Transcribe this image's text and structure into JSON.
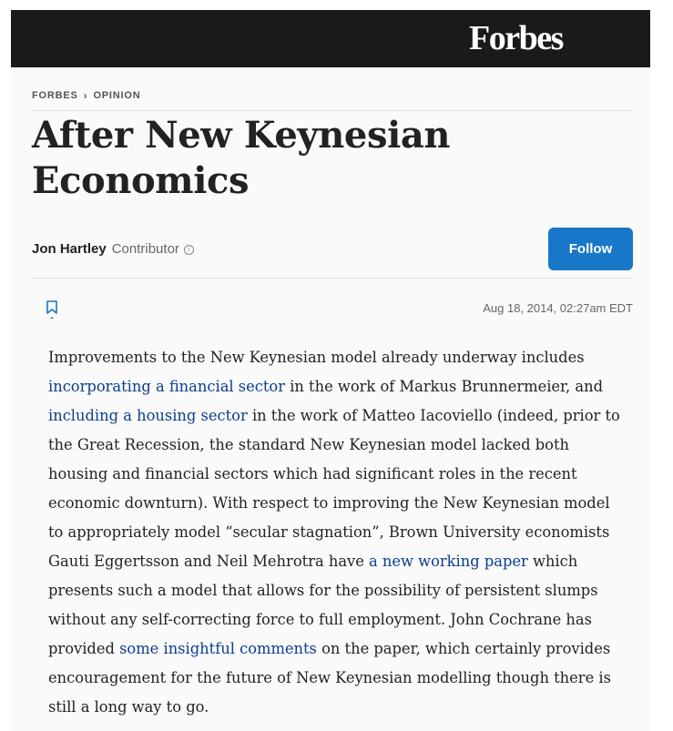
{
  "header": {
    "logo": "Forbes"
  },
  "breadcrumb": {
    "items": [
      "FORBES",
      "OPINION"
    ]
  },
  "article": {
    "title": "After New Keynesian Economics",
    "author": "Jon Hartley",
    "author_role": "Contributor",
    "follow_label": "Follow",
    "date": "Aug 18, 2014, 02:27am EDT",
    "body": {
      "t1": "Improvements to the New Keynesian model already underway includes ",
      "link1": "incorporating a financial sector",
      "t2": " in the work of Markus Brunnermeier, and ",
      "link2": "including a housing sector",
      "t3": " in the work of Matteo Iacoviello (indeed, prior to the Great Recession, the standard New Keynesian model lacked both housing and financial sectors which had significant roles in the recent economic downturn). With respect to improving the New Keynesian model to appropriately model “secular stagnation”, Brown University economists Gauti Eggertsson and Neil Mehrotra have ",
      "link3": "a new working paper",
      "t4": " which presents such a model that allows for the possibility of persistent slumps without any self-correcting force to full employment. John Cochrane has provided ",
      "link4": "some insightful comments",
      "t5": " on the paper, which certainly provides encouragement for the future of New Keynesian modelling though there is still a long way to go."
    }
  },
  "colors": {
    "masthead": "#1a1a1a",
    "accent": "#1877c8",
    "link": "#0a3d8f"
  }
}
